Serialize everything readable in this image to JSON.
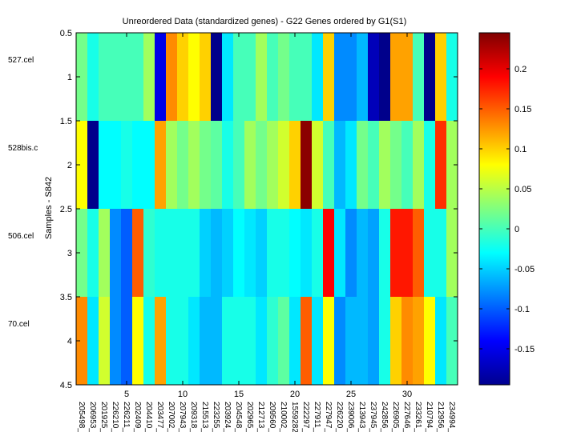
{
  "chart_data": {
    "type": "heatmap",
    "title": "Unreordered Data (standardized genes) - G22 Genes ordered by G1(S1)",
    "ylabel": "Samples - S842",
    "xlim": [
      0.5,
      34.5
    ],
    "ylim": [
      0.5,
      4.5
    ],
    "x_ticks": [
      5,
      10,
      15,
      20,
      25,
      30
    ],
    "y_ticks": [
      0.5,
      1,
      1.5,
      2,
      2.5,
      3,
      3.5,
      4,
      4.5
    ],
    "sample_labels": [
      "527.cel",
      "528bis.c",
      "506.cel",
      "70.cel"
    ],
    "gene_labels": [
      "205498_",
      "206953_",
      "201925_",
      "226210_",
      "226211_",
      "202409_",
      "204410_",
      "203477_",
      "207002_",
      "207943_",
      "209318_",
      "215513_",
      "223255_",
      "203924_",
      "204548_",
      "202965_",
      "212713_",
      "209560_",
      "210002_",
      "1559282_",
      "222297_",
      "227911_",
      "227947_",
      "226220_",
      "239006_",
      "213943_",
      "237945_",
      "242856_",
      "226905_",
      "227646_",
      "233261_",
      "210794_",
      "212956_",
      "234994_"
    ],
    "colorbar": {
      "colormap": "jet",
      "clim": [
        -0.195,
        0.245
      ],
      "ticks": [
        -0.15,
        -0.1,
        -0.05,
        0,
        0.05,
        0.1,
        0.15,
        0.2
      ],
      "tick_labels": [
        "-0.15",
        "-0.1",
        "-0.05",
        "0",
        "0.05",
        "0.1",
        "0.15",
        "0.2"
      ]
    },
    "values": [
      [
        0.02,
        -0.02,
        0.0,
        0.0,
        0.0,
        0.0,
        0.04,
        -0.15,
        0.13,
        0.1,
        0.08,
        0.1,
        -0.19,
        -0.04,
        0.0,
        0.0,
        0.04,
        0.0,
        0.02,
        0.0,
        0.0,
        -0.04,
        0.1,
        -0.08,
        -0.08,
        -0.06,
        -0.17,
        -0.19,
        0.12,
        0.12,
        0.0,
        -0.19,
        0.1,
        -0.02
      ],
      [
        0.08,
        -0.19,
        -0.03,
        -0.03,
        -0.02,
        -0.03,
        -0.03,
        0.12,
        0.04,
        0.02,
        0.04,
        0.02,
        0.01,
        -0.02,
        0.0,
        0.04,
        0.02,
        0.04,
        0.06,
        0.1,
        0.24,
        0.06,
        0.0,
        -0.06,
        -0.04,
        0.02,
        0.0,
        0.04,
        0.02,
        0.0,
        0.04,
        -0.02,
        0.17,
        0.04
      ],
      [
        0.02,
        -0.02,
        0.04,
        -0.08,
        -0.1,
        0.15,
        -0.01,
        -0.02,
        -0.02,
        -0.02,
        -0.02,
        -0.05,
        -0.06,
        -0.05,
        -0.03,
        -0.04,
        -0.05,
        -0.02,
        -0.02,
        -0.03,
        -0.04,
        -0.02,
        0.19,
        -0.04,
        -0.08,
        -0.06,
        -0.07,
        -0.02,
        0.18,
        0.18,
        0.15,
        -0.02,
        -0.02,
        0.04
      ],
      [
        0.13,
        -0.04,
        0.06,
        -0.08,
        -0.1,
        0.08,
        -0.02,
        0.12,
        -0.02,
        -0.02,
        -0.04,
        -0.06,
        -0.06,
        -0.02,
        -0.02,
        -0.02,
        -0.04,
        -0.01,
        0.01,
        -0.04,
        0.15,
        -0.04,
        0.08,
        -0.08,
        -0.06,
        -0.06,
        -0.07,
        -0.02,
        0.1,
        0.13,
        0.12,
        0.08,
        -0.04,
        0.0
      ]
    ]
  }
}
